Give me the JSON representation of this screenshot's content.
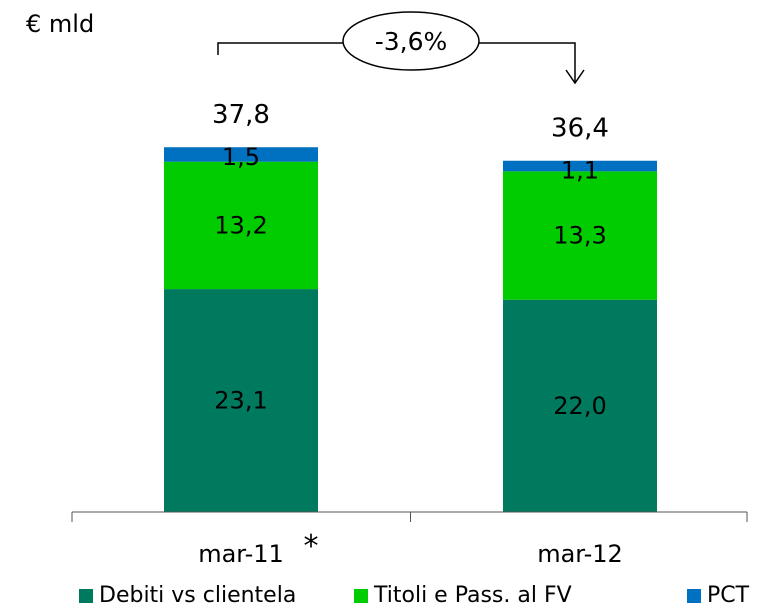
{
  "chart_data": {
    "type": "bar",
    "stacked": true,
    "unit": "€ mld",
    "categories": [
      "mar-11",
      "mar-12"
    ],
    "category_annotations": [
      "*",
      ""
    ],
    "series": [
      {
        "name": "Debiti vs clientela",
        "values": [
          23.1,
          22.0
        ],
        "labels": [
          "23,1",
          "22,0"
        ],
        "color": "#007A5E"
      },
      {
        "name": "Titoli e Pass. al FV",
        "values": [
          13.2,
          13.3
        ],
        "labels": [
          "13,2",
          "13,3"
        ],
        "color": "#00CC00"
      },
      {
        "name": "PCT",
        "values": [
          1.5,
          1.1
        ],
        "labels": [
          "1,5",
          "1,1"
        ],
        "color": "#0070C0"
      }
    ],
    "totals": [
      37.8,
      36.4
    ],
    "total_labels": [
      "37,8",
      "36,4"
    ],
    "change_label": "-3,6%",
    "legend_position": "bottom",
    "grid": false
  }
}
